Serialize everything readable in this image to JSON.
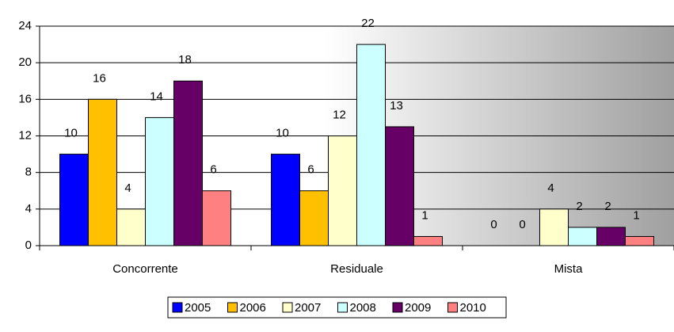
{
  "chart_data": {
    "type": "bar",
    "categories": [
      "Concorrente",
      "Residuale",
      "Mista"
    ],
    "series": [
      {
        "name": "2005",
        "color": "#0000ff",
        "values": [
          10,
          10,
          0
        ]
      },
      {
        "name": "2006",
        "color": "#ffc000",
        "values": [
          16,
          6,
          0
        ]
      },
      {
        "name": "2007",
        "color": "#ffffcc",
        "values": [
          4,
          12,
          4
        ]
      },
      {
        "name": "2008",
        "color": "#ccffff",
        "values": [
          14,
          22,
          2
        ]
      },
      {
        "name": "2009",
        "color": "#660066",
        "values": [
          18,
          13,
          2
        ]
      },
      {
        "name": "2010",
        "color": "#ff8080",
        "values": [
          6,
          1,
          1
        ]
      }
    ],
    "ylim": [
      0,
      24
    ],
    "yticks": [
      0,
      4,
      8,
      12,
      16,
      20,
      24
    ],
    "grid": true,
    "legend": "bottom"
  }
}
